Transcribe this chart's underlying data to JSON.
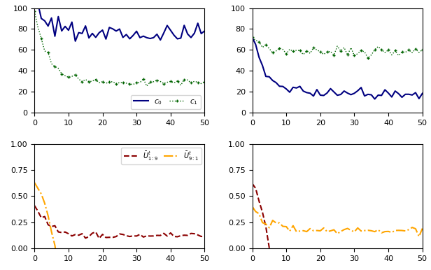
{
  "top_left": {
    "ylim": [
      0,
      100
    ],
    "yticks": [
      0,
      20,
      40,
      60,
      80,
      100
    ],
    "legend_labels": [
      "$c_0$",
      "$c_1$"
    ],
    "c0_color": "#000080",
    "c1_color": "#006400"
  },
  "top_right": {
    "ylim": [
      0,
      100
    ],
    "yticks": [
      0,
      20,
      40,
      60,
      80,
      100
    ]
  },
  "bot_left": {
    "ylim": [
      0.0,
      1.05
    ],
    "yticks": [
      0.0,
      0.25,
      0.5,
      0.75,
      1.0
    ],
    "legend_labels": [
      "$\\bar{U}^t_{1:9}$",
      "$\\bar{U}^t_{9:1}$"
    ],
    "line1_color": "#8b0000",
    "line2_color": "#ffa500"
  },
  "bot_right": {
    "ylim": [
      0.0,
      1.05
    ],
    "yticks": [
      0.0,
      0.25,
      0.5,
      0.75,
      1.0
    ]
  },
  "xlim": [
    0,
    50
  ],
  "xticks": [
    0,
    10,
    20,
    30,
    40,
    50
  ],
  "n_points": 50
}
